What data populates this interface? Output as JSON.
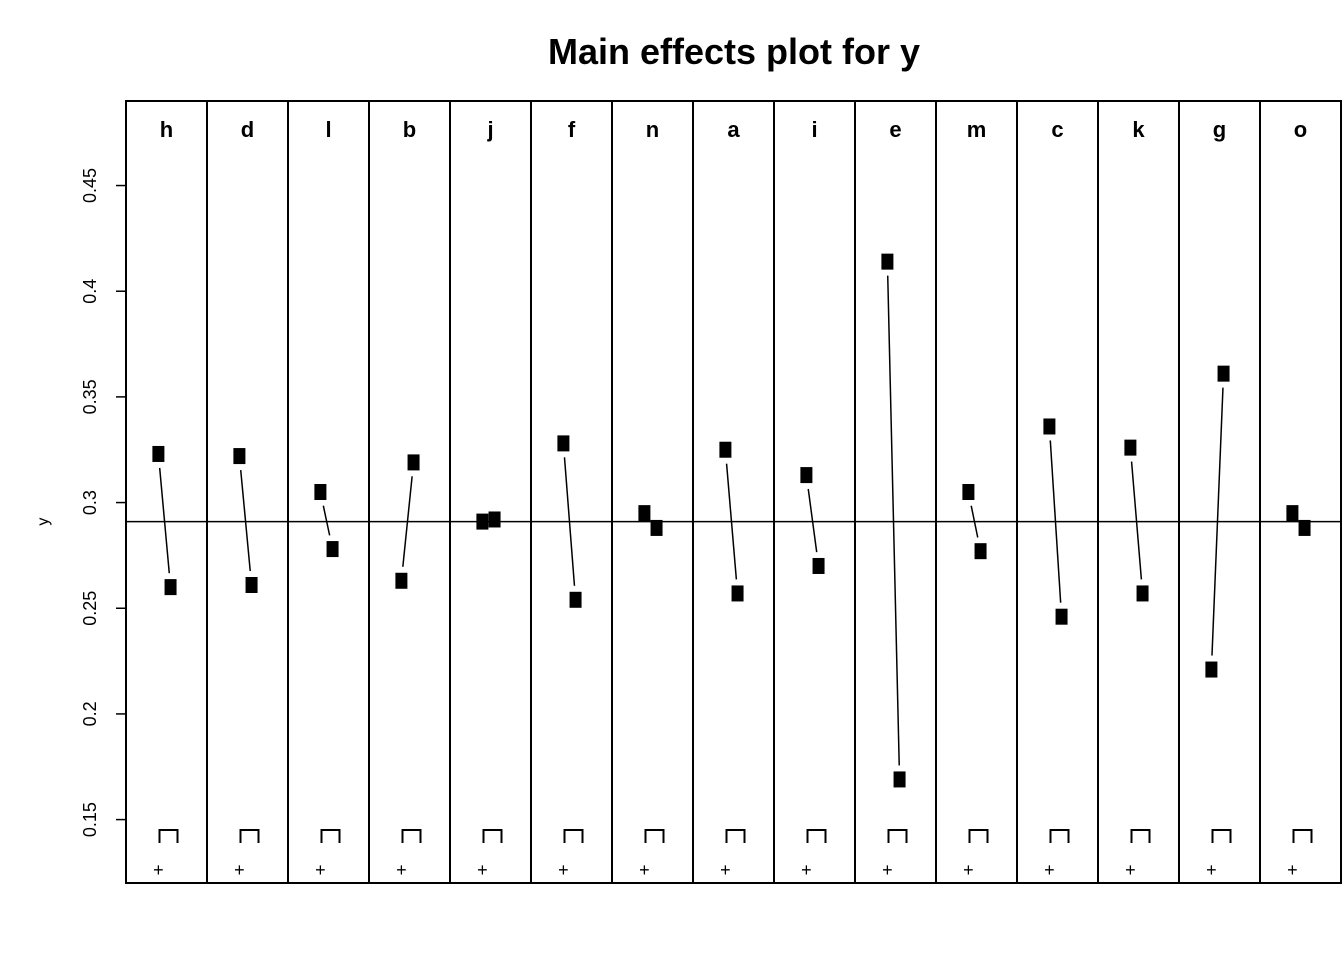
{
  "chart_data": {
    "type": "line",
    "title": "Main effects plot for y",
    "ylabel": "y",
    "ylim": [
      0.12,
      0.49
    ],
    "yticks": [
      "0.15",
      "0.2",
      "0.25",
      "0.3",
      "0.35",
      "0.4",
      "0.45"
    ],
    "grand_mean": 0.291,
    "levels": [
      "−",
      "+"
    ],
    "level_labels": [
      "",
      "+"
    ],
    "series": [
      {
        "name": "h",
        "values": [
          0.323,
          0.26
        ]
      },
      {
        "name": "d",
        "values": [
          0.322,
          0.261
        ]
      },
      {
        "name": "l",
        "values": [
          0.305,
          0.278
        ]
      },
      {
        "name": "b",
        "values": [
          0.263,
          0.319
        ]
      },
      {
        "name": "j",
        "values": [
          0.291,
          0.292
        ]
      },
      {
        "name": "f",
        "values": [
          0.328,
          0.254
        ]
      },
      {
        "name": "n",
        "values": [
          0.295,
          0.288
        ]
      },
      {
        "name": "a",
        "values": [
          0.325,
          0.257
        ]
      },
      {
        "name": "i",
        "values": [
          0.313,
          0.27
        ]
      },
      {
        "name": "e",
        "values": [
          0.414,
          0.169
        ]
      },
      {
        "name": "m",
        "values": [
          0.305,
          0.277
        ]
      },
      {
        "name": "c",
        "values": [
          0.336,
          0.246
        ]
      },
      {
        "name": "k",
        "values": [
          0.326,
          0.257
        ]
      },
      {
        "name": "g",
        "values": [
          0.221,
          0.361
        ]
      },
      {
        "name": "o",
        "values": [
          0.295,
          0.288
        ]
      }
    ]
  }
}
